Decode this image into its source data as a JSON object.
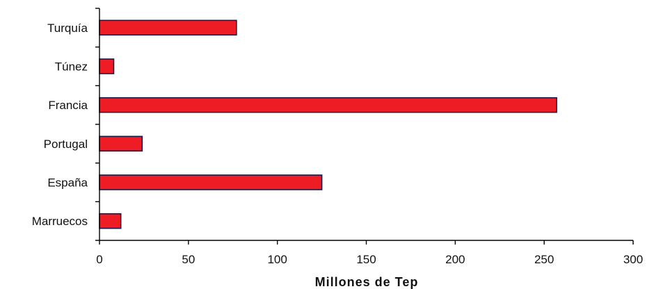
{
  "chart_data": {
    "type": "bar",
    "orientation": "horizontal",
    "categories": [
      "Turquía",
      "Túnez",
      "Francia",
      "Portugal",
      "España",
      "Marruecos"
    ],
    "values": [
      77,
      8,
      257,
      24,
      125,
      12
    ],
    "xlabel": "Millones de Tep",
    "ylabel": "",
    "xlim": [
      0,
      300
    ],
    "xticks": [
      0,
      50,
      100,
      150,
      200,
      250,
      300
    ],
    "grid": false,
    "legend": "none",
    "bar_color": "#ee1c25",
    "bar_edge_color": "#1a1a4a"
  }
}
